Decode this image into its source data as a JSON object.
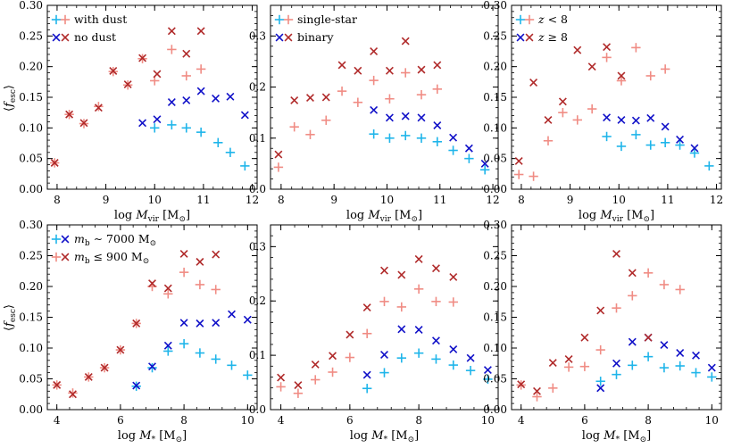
{
  "colors": {
    "light_blue": "#1fb5ea",
    "dark_blue": "#1010c8",
    "light_red": "#f08c84",
    "dark_red": "#b02a2a"
  },
  "ylabel": "⟨f",
  "ylabel_sub": "esc",
  "ylabel_close": "⟩",
  "chart_data": [
    {
      "type": "scatter",
      "panel": "top-left",
      "xlabel": "log M_vir [M_⊙]",
      "xlabel_main": "log ",
      "xlabel_sym": "M",
      "xlabel_sub": "vir",
      "xlabel_unit": " [M",
      "xlabel_unit_sub": "⊙",
      "xlabel_unit_close": "]",
      "xlim": [
        7.8,
        12.1
      ],
      "ylim": [
        0,
        0.3
      ],
      "xticks": [
        8,
        9,
        10,
        11,
        12
      ],
      "yticks": [
        0.0,
        0.05,
        0.1,
        0.15,
        0.2,
        0.25,
        0.3
      ],
      "ytick_labels": [
        "0.00",
        "0.05",
        "0.10",
        "0.15",
        "0.20",
        "0.25",
        "0.30"
      ],
      "legend": [
        {
          "label": "with dust",
          "marker": "+",
          "c1": "#1fb5ea",
          "c2": "#f08c84"
        },
        {
          "label": "no dust",
          "marker": "x",
          "c1": "#1010c8",
          "c2": "#b02a2a"
        }
      ],
      "series": [
        {
          "name": "with dust (low-mass)",
          "marker": "+",
          "color": "#1fb5ea",
          "x": [
            10.0,
            10.35,
            10.65,
            10.95,
            11.3,
            11.55,
            11.85
          ],
          "y": [
            0.1,
            0.105,
            0.1,
            0.093,
            0.076,
            0.06,
            0.038
          ]
        },
        {
          "name": "with dust (high-mass)",
          "marker": "+",
          "color": "#f08c84",
          "x": [
            7.95,
            8.25,
            8.55,
            8.85,
            9.15,
            9.45,
            9.75,
            10.0,
            10.35,
            10.65,
            10.95
          ],
          "y": [
            0.043,
            0.122,
            0.107,
            0.135,
            0.192,
            0.17,
            0.213,
            0.177,
            0.228,
            0.185,
            0.196
          ]
        },
        {
          "name": "no dust (low-mass)",
          "marker": "x",
          "color": "#1010c8",
          "x": [
            9.75,
            10.05,
            10.35,
            10.65,
            10.95,
            11.25,
            11.55,
            11.85
          ],
          "y": [
            0.108,
            0.114,
            0.142,
            0.145,
            0.16,
            0.148,
            0.151,
            0.121
          ]
        },
        {
          "name": "no dust (high-mass)",
          "marker": "x",
          "color": "#b02a2a",
          "x": [
            7.95,
            8.25,
            8.55,
            8.85,
            9.15,
            9.45,
            9.75,
            10.05,
            10.35,
            10.65,
            10.95
          ],
          "y": [
            0.043,
            0.122,
            0.108,
            0.133,
            0.193,
            0.171,
            0.214,
            0.188,
            0.258,
            0.221,
            0.258
          ]
        }
      ]
    },
    {
      "type": "scatter",
      "panel": "top-middle",
      "xlabel": "log M_vir [M_⊙]",
      "xlabel_main": "log ",
      "xlabel_sym": "M",
      "xlabel_sub": "vir",
      "xlabel_unit": " [M",
      "xlabel_unit_sub": "⊙",
      "xlabel_unit_close": "]",
      "xlim": [
        7.8,
        12.1
      ],
      "ylim": [
        0,
        0.36
      ],
      "xticks": [
        8,
        9,
        10,
        11,
        12
      ],
      "yticks": [
        0.0,
        0.1,
        0.2,
        0.3
      ],
      "ytick_labels": [
        "0.0",
        "0.1",
        "0.2",
        "0.3"
      ],
      "legend": [
        {
          "label": "single-star",
          "marker": "+",
          "c1": "#1fb5ea",
          "c2": "#f08c84"
        },
        {
          "label": "binary",
          "marker": "x",
          "c1": "#1010c8",
          "c2": "#b02a2a"
        }
      ],
      "series": [
        {
          "name": "single-star (blue)",
          "marker": "+",
          "color": "#1fb5ea",
          "x": [
            9.75,
            10.05,
            10.35,
            10.65,
            10.95,
            11.25,
            11.55,
            11.85
          ],
          "y": [
            0.108,
            0.1,
            0.105,
            0.1,
            0.093,
            0.076,
            0.06,
            0.038
          ]
        },
        {
          "name": "single-star (red)",
          "marker": "+",
          "color": "#f08c84",
          "x": [
            7.95,
            8.25,
            8.55,
            8.85,
            9.15,
            9.45,
            9.75,
            10.05,
            10.35,
            10.65,
            10.95
          ],
          "y": [
            0.043,
            0.122,
            0.107,
            0.135,
            0.192,
            0.17,
            0.213,
            0.177,
            0.228,
            0.185,
            0.196
          ]
        },
        {
          "name": "binary (blue)",
          "marker": "x",
          "color": "#1010c8",
          "x": [
            9.75,
            10.05,
            10.35,
            10.65,
            10.95,
            11.25,
            11.55,
            11.85
          ],
          "y": [
            0.155,
            0.14,
            0.143,
            0.14,
            0.125,
            0.101,
            0.08,
            0.05
          ]
        },
        {
          "name": "binary (red)",
          "marker": "x",
          "color": "#b02a2a",
          "x": [
            7.95,
            8.25,
            8.55,
            8.85,
            9.15,
            9.45,
            9.75,
            10.05,
            10.35,
            10.65,
            10.95
          ],
          "y": [
            0.068,
            0.174,
            0.179,
            0.18,
            0.243,
            0.232,
            0.27,
            0.232,
            0.29,
            0.234,
            0.243
          ]
        }
      ]
    },
    {
      "type": "scatter",
      "panel": "top-right",
      "xlabel": "log M_vir [M_⊙]",
      "xlabel_main": "log ",
      "xlabel_sym": "M",
      "xlabel_sub": "vir",
      "xlabel_unit": " [M",
      "xlabel_unit_sub": "⊙",
      "xlabel_unit_close": "]",
      "xlim": [
        7.8,
        12.1
      ],
      "ylim": [
        0,
        0.3
      ],
      "xticks": [
        8,
        9,
        10,
        11,
        12
      ],
      "yticks": [
        0.0,
        0.05,
        0.1,
        0.15,
        0.2,
        0.25,
        0.3
      ],
      "ytick_labels": [
        "0.00",
        "0.05",
        "0.10",
        "0.15",
        "0.20",
        "0.25",
        "0.30"
      ],
      "legend": [
        {
          "label": "z < 8",
          "marker": "+",
          "c1": "#1fb5ea",
          "c2": "#f08c84"
        },
        {
          "label": "z ≥ 8",
          "marker": "x",
          "c1": "#1010c8",
          "c2": "#b02a2a"
        }
      ],
      "series": [
        {
          "name": "z<8 (blue)",
          "marker": "+",
          "color": "#1fb5ea",
          "x": [
            9.75,
            10.05,
            10.35,
            10.65,
            10.95,
            11.25,
            11.55,
            11.85
          ],
          "y": [
            0.086,
            0.07,
            0.089,
            0.072,
            0.076,
            0.072,
            0.059,
            0.038
          ]
        },
        {
          "name": "z<8 (red)",
          "marker": "+",
          "color": "#f08c84",
          "x": [
            7.95,
            8.25,
            8.55,
            8.85,
            9.15,
            9.45,
            9.75,
            10.05,
            10.35,
            10.65,
            10.95
          ],
          "y": [
            0.024,
            0.021,
            0.079,
            0.125,
            0.113,
            0.131,
            0.215,
            0.177,
            0.231,
            0.185,
            0.196
          ]
        },
        {
          "name": "z>=8 (blue)",
          "marker": "x",
          "color": "#1010c8",
          "x": [
            9.75,
            10.05,
            10.35,
            10.65,
            10.95,
            11.25,
            11.55
          ],
          "y": [
            0.117,
            0.113,
            0.112,
            0.116,
            0.102,
            0.081,
            0.067
          ]
        },
        {
          "name": "z>=8 (red)",
          "marker": "x",
          "color": "#b02a2a",
          "x": [
            7.95,
            8.25,
            8.55,
            8.85,
            9.15,
            9.45,
            9.75,
            10.05
          ],
          "y": [
            0.046,
            0.174,
            0.113,
            0.143,
            0.227,
            0.2,
            0.232,
            0.185
          ]
        }
      ]
    },
    {
      "type": "scatter",
      "panel": "bottom-left",
      "xlabel": "log M_* [M_⊙]",
      "xlabel_main": "log ",
      "xlabel_sym": "M",
      "xlabel_sub": "*",
      "xlabel_unit": " [M",
      "xlabel_unit_sub": "⊙",
      "xlabel_unit_close": "]",
      "xlim": [
        3.7,
        10.3
      ],
      "ylim": [
        0,
        0.3
      ],
      "xticks": [
        4,
        6,
        8,
        10
      ],
      "yticks": [
        0.0,
        0.05,
        0.1,
        0.15,
        0.2,
        0.25,
        0.3
      ],
      "ytick_labels": [
        "0.00",
        "0.05",
        "0.10",
        "0.15",
        "0.20",
        "0.25",
        "0.30"
      ],
      "legend": [
        {
          "label": "m_b ~ 7000 M_⊙",
          "sym": "m",
          "sub": "b",
          "rest": " ∼ 7000 M",
          "rest_sub": "⊙",
          "marker": "+x",
          "c1": "#1fb5ea",
          "c2": "#1010c8"
        },
        {
          "label": "m_b ≤ 900 M_⊙",
          "sym": "m",
          "sub": "b",
          "rest": " ≤ 900 M",
          "rest_sub": "⊙",
          "marker": "+x",
          "c1": "#f08c84",
          "c2": "#b02a2a"
        }
      ],
      "series": [
        {
          "name": "m_b~7000 (+)",
          "marker": "+",
          "color": "#1fb5ea",
          "x": [
            6.5,
            7.0,
            7.5,
            8.0,
            8.5,
            9.0,
            9.5,
            10.0
          ],
          "y": [
            0.038,
            0.068,
            0.095,
            0.107,
            0.092,
            0.082,
            0.072,
            0.056
          ]
        },
        {
          "name": "m_b~7000 (x)",
          "marker": "x",
          "color": "#1010c8",
          "x": [
            6.5,
            7.0,
            7.5,
            8.0,
            8.5,
            9.0,
            9.5,
            10.0
          ],
          "y": [
            0.039,
            0.07,
            0.104,
            0.141,
            0.14,
            0.141,
            0.155,
            0.146
          ]
        },
        {
          "name": "m_b<=900 (+)",
          "marker": "+",
          "color": "#f08c84",
          "x": [
            4.0,
            4.5,
            5.0,
            5.5,
            6.0,
            6.5,
            7.0,
            7.5,
            8.0,
            8.5,
            9.0
          ],
          "y": [
            0.04,
            0.027,
            0.053,
            0.068,
            0.097,
            0.14,
            0.2,
            0.188,
            0.223,
            0.203,
            0.195
          ]
        },
        {
          "name": "m_b<=900 (x)",
          "marker": "x",
          "color": "#b02a2a",
          "x": [
            4.0,
            4.5,
            5.0,
            5.5,
            6.0,
            6.5,
            7.0,
            7.5,
            8.0,
            8.5,
            9.0
          ],
          "y": [
            0.04,
            0.025,
            0.053,
            0.068,
            0.097,
            0.14,
            0.205,
            0.197,
            0.253,
            0.24,
            0.252
          ]
        }
      ]
    },
    {
      "type": "scatter",
      "panel": "bottom-middle",
      "xlabel": "log M_* [M_⊙]",
      "xlabel_main": "log ",
      "xlabel_sym": "M",
      "xlabel_sub": "*",
      "xlabel_unit": " [M",
      "xlabel_unit_sub": "⊙",
      "xlabel_unit_close": "]",
      "xlim": [
        3.7,
        10.3
      ],
      "ylim": [
        0,
        0.34
      ],
      "xticks": [
        4,
        6,
        8,
        10
      ],
      "yticks": [
        0.0,
        0.1,
        0.2,
        0.3
      ],
      "ytick_labels": [
        "0.0",
        "0.1",
        "0.2",
        "0.3"
      ],
      "legend": [],
      "series": [
        {
          "name": "blue +",
          "marker": "+",
          "color": "#1fb5ea",
          "x": [
            6.5,
            7.0,
            7.5,
            8.0,
            8.5,
            9.0,
            9.5,
            10.0
          ],
          "y": [
            0.039,
            0.068,
            0.095,
            0.104,
            0.093,
            0.082,
            0.072,
            0.056
          ]
        },
        {
          "name": "blue x",
          "marker": "x",
          "color": "#1010c8",
          "x": [
            6.5,
            7.0,
            7.5,
            8.0,
            8.5,
            9.0,
            9.5,
            10.0
          ],
          "y": [
            0.064,
            0.101,
            0.148,
            0.147,
            0.127,
            0.111,
            0.095,
            0.073
          ]
        },
        {
          "name": "red +",
          "marker": "+",
          "color": "#f08c84",
          "x": [
            4.0,
            4.5,
            5.0,
            5.5,
            6.0,
            6.5,
            7.0,
            7.5,
            8.0,
            8.5,
            9.0
          ],
          "y": [
            0.042,
            0.03,
            0.055,
            0.069,
            0.096,
            0.14,
            0.199,
            0.189,
            0.222,
            0.199,
            0.198
          ]
        },
        {
          "name": "red x",
          "marker": "x",
          "color": "#b02a2a",
          "x": [
            4.0,
            4.5,
            5.0,
            5.5,
            6.0,
            6.5,
            7.0,
            7.5,
            8.0,
            8.5,
            9.0
          ],
          "y": [
            0.059,
            0.045,
            0.083,
            0.099,
            0.138,
            0.188,
            0.256,
            0.248,
            0.277,
            0.26,
            0.244
          ]
        }
      ]
    },
    {
      "type": "scatter",
      "panel": "bottom-right",
      "xlabel": "log M_* [M_⊙]",
      "xlabel_main": "log ",
      "xlabel_sym": "M",
      "xlabel_sub": "*",
      "xlabel_unit": " [M",
      "xlabel_unit_sub": "⊙",
      "xlabel_unit_close": "]",
      "xlim": [
        3.7,
        10.3
      ],
      "ylim": [
        0,
        0.3
      ],
      "xticks": [
        4,
        6,
        8,
        10
      ],
      "yticks": [
        0.0,
        0.05,
        0.1,
        0.15,
        0.2,
        0.25,
        0.3
      ],
      "ytick_labels": [
        "0.00",
        "0.05",
        "0.10",
        "0.15",
        "0.20",
        "0.25",
        "0.30"
      ],
      "legend": [],
      "series": [
        {
          "name": "blue +",
          "marker": "+",
          "color": "#1fb5ea",
          "x": [
            6.5,
            7.0,
            7.5,
            8.0,
            8.5,
            9.0,
            9.5,
            10.0
          ],
          "y": [
            0.046,
            0.057,
            0.072,
            0.086,
            0.068,
            0.071,
            0.06,
            0.053
          ]
        },
        {
          "name": "blue x",
          "marker": "x",
          "color": "#1010c8",
          "x": [
            6.5,
            7.0,
            7.5,
            8.0,
            8.5,
            9.0,
            9.5,
            10.0
          ],
          "y": [
            0.035,
            0.075,
            0.11,
            0.117,
            0.105,
            0.092,
            0.088,
            0.068
          ]
        },
        {
          "name": "red +",
          "marker": "+",
          "color": "#f08c84",
          "x": [
            4.0,
            4.5,
            5.0,
            5.5,
            6.0,
            6.5,
            7.0,
            7.5,
            8.0,
            8.5,
            9.0
          ],
          "y": [
            0.04,
            0.021,
            0.035,
            0.069,
            0.07,
            0.097,
            0.165,
            0.185,
            0.222,
            0.203,
            0.195
          ]
        },
        {
          "name": "red x",
          "marker": "x",
          "color": "#b02a2a",
          "x": [
            4.0,
            4.5,
            5.0,
            5.5,
            6.0,
            6.5,
            7.0,
            7.5,
            8.0
          ],
          "y": [
            0.041,
            0.03,
            0.076,
            0.082,
            0.117,
            0.161,
            0.253,
            0.222,
            0.117
          ]
        }
      ]
    }
  ]
}
